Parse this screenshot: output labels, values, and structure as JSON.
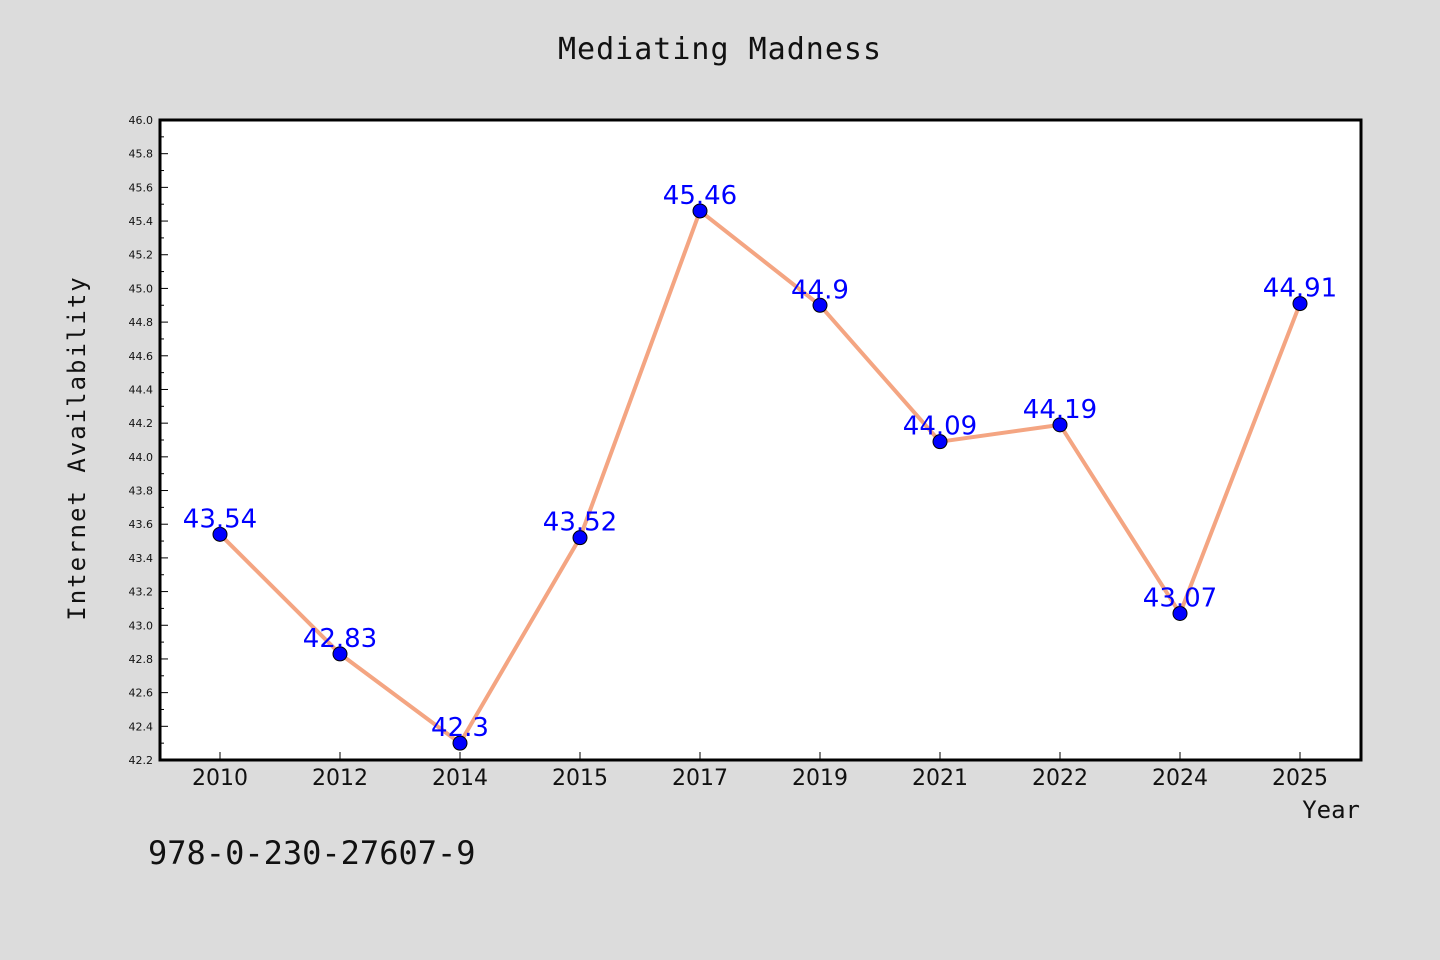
{
  "chart_data": {
    "type": "line",
    "title": "Mediating Madness",
    "xlabel": "Year",
    "ylabel": "Internet Availability",
    "categories": [
      "2010",
      "2012",
      "2014",
      "2015",
      "2017",
      "2019",
      "2021",
      "2022",
      "2024",
      "2025"
    ],
    "series": [
      {
        "values": [
          43.54,
          42.83,
          42.3,
          43.52,
          45.46,
          44.9,
          44.09,
          44.19,
          43.07,
          44.91
        ],
        "labels": [
          "43.54",
          "42.83",
          "42.3",
          "43.52",
          "45.46",
          "44.9",
          "44.09",
          "44.19",
          "43.07",
          "44.91"
        ],
        "line_color": "#f4a582",
        "marker_color": "#0000ff"
      }
    ],
    "ylim": [
      42.2,
      46.0
    ],
    "yticks": [
      "42.2",
      "42.4",
      "42.6",
      "42.8",
      "43.0",
      "43.2",
      "43.4",
      "43.6",
      "43.8",
      "44.0",
      "44.2",
      "44.4",
      "44.6",
      "44.8",
      "45.0",
      "45.2",
      "45.4",
      "45.6",
      "45.8",
      "46.0"
    ],
    "grid": false,
    "label_color": "#0000ff",
    "background": "#dcdcdc",
    "plot_background": "#ffffff"
  },
  "footer": {
    "isbn": "978-0-230-27607-9"
  }
}
